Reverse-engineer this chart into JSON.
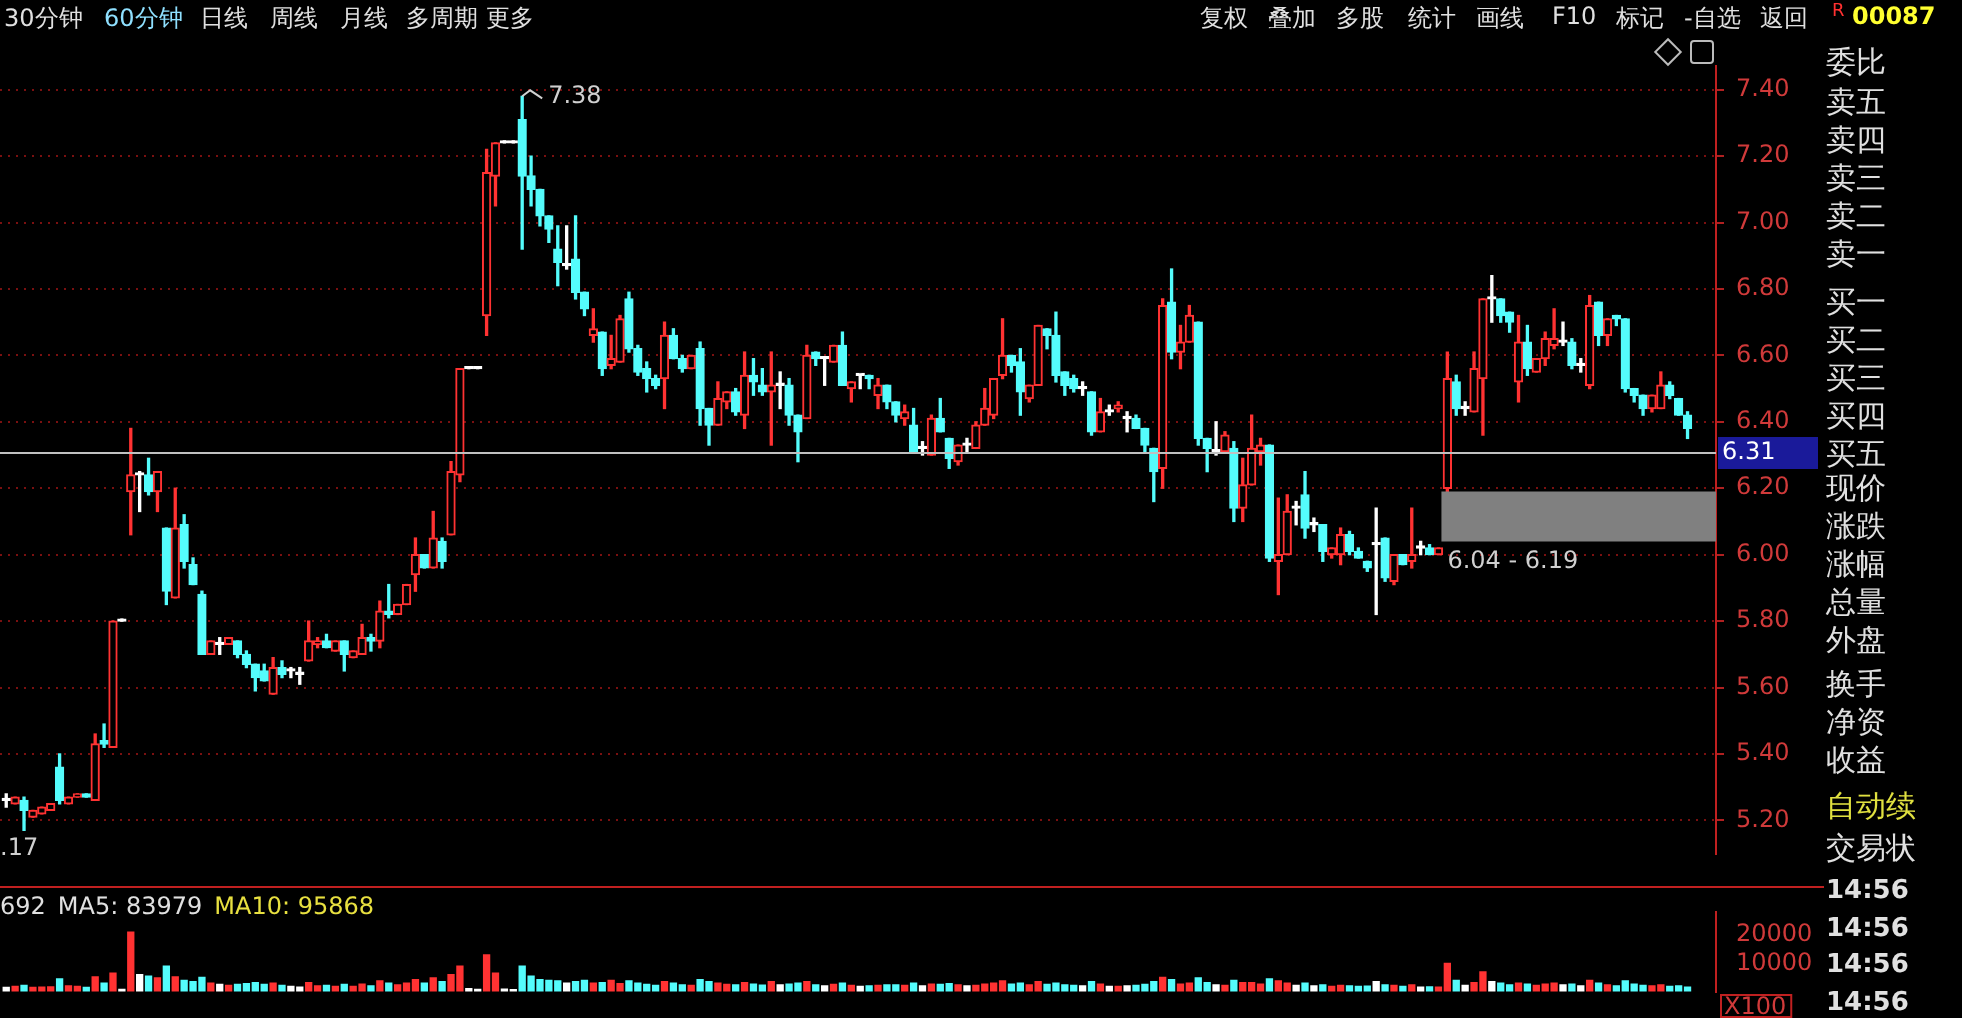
{
  "chart_data": [
    {
      "type": "candlestick",
      "categories": [
        null,
        null,
        null,
        null,
        null,
        null,
        null,
        null,
        null,
        null,
        null,
        null,
        null,
        null,
        null,
        null,
        null,
        null,
        null,
        null,
        null,
        null,
        null,
        null,
        null,
        null,
        null,
        null,
        null,
        null,
        null,
        null,
        null,
        null,
        null,
        null,
        null,
        null,
        null,
        null,
        null,
        null,
        null,
        null,
        null,
        null,
        null,
        null,
        null,
        null,
        null,
        null,
        null,
        null,
        null,
        null,
        null,
        null,
        null,
        null,
        null,
        null,
        null,
        null,
        null,
        null,
        null,
        null,
        null,
        null,
        null,
        null,
        null,
        null,
        null,
        null,
        null,
        null,
        null,
        null,
        null,
        null,
        null,
        null,
        null,
        null,
        null,
        null,
        null,
        null,
        null,
        null,
        null,
        null,
        null,
        null,
        null,
        null,
        null,
        null,
        null,
        null,
        null,
        null,
        null,
        null,
        null,
        null,
        null,
        null,
        null,
        null,
        null,
        null,
        null,
        null,
        null,
        null,
        null,
        null,
        null,
        null,
        null,
        null,
        null,
        null,
        null,
        null,
        null,
        null,
        null,
        null,
        null,
        null,
        null,
        null,
        null,
        null,
        null,
        null,
        null,
        null,
        null,
        null,
        null,
        null,
        null,
        null,
        null,
        null,
        null,
        null,
        null,
        null,
        null,
        null,
        null,
        null,
        null,
        null,
        null,
        null,
        null,
        null,
        null,
        null,
        null,
        null,
        null,
        null,
        null,
        null,
        null,
        null,
        null,
        null,
        null,
        null,
        null,
        null,
        null,
        null,
        null,
        null,
        null,
        null,
        null,
        null,
        null,
        null
      ],
      "ohlc": [
        [
          5.26,
          5.28,
          5.24,
          5.26
        ],
        [
          5.25,
          5.27,
          5.25,
          5.27
        ],
        [
          5.26,
          5.27,
          5.17,
          5.23
        ],
        [
          5.21,
          5.23,
          5.21,
          5.23
        ],
        [
          5.22,
          5.24,
          5.22,
          5.24
        ],
        [
          5.23,
          5.25,
          5.23,
          5.25
        ],
        [
          5.36,
          5.4,
          5.25,
          5.26
        ],
        [
          5.25,
          5.27,
          5.25,
          5.27
        ],
        [
          5.27,
          5.28,
          5.27,
          5.28
        ],
        [
          5.28,
          5.28,
          5.27,
          5.27
        ],
        [
          5.26,
          5.46,
          5.26,
          5.43
        ],
        [
          5.44,
          5.49,
          5.42,
          5.43
        ],
        [
          5.42,
          5.8,
          5.42,
          5.8
        ],
        [
          5.8,
          5.8,
          5.8,
          5.8
        ],
        [
          6.19,
          6.38,
          6.06,
          6.24
        ],
        [
          6.24,
          6.25,
          6.13,
          6.24
        ],
        [
          6.24,
          6.29,
          6.18,
          6.19
        ],
        [
          6.19,
          6.25,
          6.13,
          6.25
        ],
        [
          6.08,
          6.08,
          5.85,
          5.89
        ],
        [
          5.87,
          6.2,
          5.87,
          6.08
        ],
        [
          6.09,
          6.12,
          5.96,
          5.98
        ],
        [
          5.97,
          5.99,
          5.91,
          5.91
        ],
        [
          5.88,
          5.89,
          5.7,
          5.7
        ],
        [
          5.7,
          5.74,
          5.7,
          5.74
        ],
        [
          5.73,
          5.75,
          5.7,
          5.73
        ],
        [
          5.73,
          5.75,
          5.73,
          5.75
        ],
        [
          5.74,
          5.74,
          5.69,
          5.7
        ],
        [
          5.7,
          5.71,
          5.66,
          5.67
        ],
        [
          5.67,
          5.67,
          5.59,
          5.63
        ],
        [
          5.65,
          5.67,
          5.62,
          5.62
        ],
        [
          5.58,
          5.69,
          5.58,
          5.66
        ],
        [
          5.66,
          5.68,
          5.63,
          5.64
        ],
        [
          5.65,
          5.66,
          5.63,
          5.65
        ],
        [
          5.64,
          5.66,
          5.61,
          5.64
        ],
        [
          5.68,
          5.8,
          5.68,
          5.74
        ],
        [
          5.73,
          5.75,
          5.72,
          5.74
        ],
        [
          5.74,
          5.76,
          5.72,
          5.72
        ],
        [
          5.71,
          5.74,
          5.71,
          5.74
        ],
        [
          5.74,
          5.74,
          5.65,
          5.7
        ],
        [
          5.69,
          5.71,
          5.69,
          5.71
        ],
        [
          5.7,
          5.79,
          5.7,
          5.75
        ],
        [
          5.75,
          5.76,
          5.71,
          5.74
        ],
        [
          5.74,
          5.86,
          5.72,
          5.83
        ],
        [
          5.83,
          5.91,
          5.81,
          5.82
        ],
        [
          5.82,
          5.85,
          5.82,
          5.85
        ],
        [
          5.85,
          5.91,
          5.85,
          5.91
        ],
        [
          5.94,
          6.05,
          5.89,
          6.0
        ],
        [
          6.0,
          6.0,
          5.96,
          5.96
        ],
        [
          5.96,
          6.13,
          5.96,
          6.05
        ],
        [
          6.04,
          6.05,
          5.96,
          5.98
        ],
        [
          6.06,
          6.28,
          6.06,
          6.25
        ],
        [
          6.24,
          6.56,
          6.22,
          6.56
        ],
        [
          6.56,
          6.56,
          6.56,
          6.56
        ],
        [
          6.56,
          6.56,
          6.56,
          6.56
        ],
        [
          6.72,
          7.22,
          6.66,
          7.15
        ],
        [
          7.14,
          7.24,
          7.05,
          7.24
        ],
        [
          7.24,
          7.24,
          7.24,
          7.24
        ],
        [
          7.24,
          7.24,
          7.24,
          7.24
        ],
        [
          7.31,
          7.38,
          6.92,
          7.14
        ],
        [
          7.14,
          7.2,
          7.05,
          7.1
        ],
        [
          7.1,
          7.1,
          6.99,
          7.02
        ],
        [
          7.02,
          7.02,
          6.94,
          6.98
        ],
        [
          6.92,
          6.99,
          6.81,
          6.88
        ],
        [
          6.87,
          6.99,
          6.86,
          6.87
        ],
        [
          6.89,
          7.02,
          6.77,
          6.79
        ],
        [
          6.79,
          6.79,
          6.72,
          6.74
        ],
        [
          6.66,
          6.74,
          6.64,
          6.68
        ],
        [
          6.67,
          6.67,
          6.54,
          6.56
        ],
        [
          6.57,
          6.66,
          6.56,
          6.59
        ],
        [
          6.58,
          6.72,
          6.58,
          6.71
        ],
        [
          6.77,
          6.79,
          6.61,
          6.62
        ],
        [
          6.62,
          6.63,
          6.54,
          6.55
        ],
        [
          6.56,
          6.58,
          6.49,
          6.53
        ],
        [
          6.53,
          6.54,
          6.5,
          6.51
        ],
        [
          6.53,
          6.7,
          6.44,
          6.66
        ],
        [
          6.66,
          6.68,
          6.59,
          6.59
        ],
        [
          6.59,
          6.6,
          6.55,
          6.56
        ],
        [
          6.56,
          6.6,
          6.56,
          6.6
        ],
        [
          6.62,
          6.64,
          6.39,
          6.44
        ],
        [
          6.44,
          6.44,
          6.33,
          6.39
        ],
        [
          6.39,
          6.52,
          6.39,
          6.47
        ],
        [
          6.46,
          6.49,
          6.44,
          6.49
        ],
        [
          6.49,
          6.5,
          6.42,
          6.43
        ],
        [
          6.42,
          6.61,
          6.38,
          6.54
        ],
        [
          6.54,
          6.59,
          6.48,
          6.52
        ],
        [
          6.51,
          6.56,
          6.48,
          6.49
        ],
        [
          6.49,
          6.61,
          6.33,
          6.51
        ],
        [
          6.51,
          6.55,
          6.44,
          6.51
        ],
        [
          6.51,
          6.53,
          6.39,
          6.42
        ],
        [
          6.42,
          6.42,
          6.28,
          6.37
        ],
        [
          6.41,
          6.63,
          6.41,
          6.6
        ],
        [
          6.61,
          6.61,
          6.57,
          6.59
        ],
        [
          6.59,
          6.59,
          6.51,
          6.59
        ],
        [
          6.58,
          6.63,
          6.58,
          6.63
        ],
        [
          6.63,
          6.67,
          6.51,
          6.51
        ],
        [
          6.5,
          6.52,
          6.46,
          6.52
        ],
        [
          6.54,
          6.54,
          6.5,
          6.54
        ],
        [
          6.54,
          6.54,
          6.5,
          6.53
        ],
        [
          6.48,
          6.53,
          6.44,
          6.51
        ],
        [
          6.51,
          6.51,
          6.44,
          6.46
        ],
        [
          6.46,
          6.46,
          6.4,
          6.42
        ],
        [
          6.41,
          6.45,
          6.39,
          6.43
        ],
        [
          6.39,
          6.44,
          6.31,
          6.31
        ],
        [
          6.32,
          6.34,
          6.3,
          6.32
        ],
        [
          6.3,
          6.42,
          6.3,
          6.41
        ],
        [
          6.41,
          6.47,
          6.37,
          6.37
        ],
        [
          6.35,
          6.35,
          6.26,
          6.29
        ],
        [
          6.28,
          6.33,
          6.27,
          6.33
        ],
        [
          6.33,
          6.35,
          6.31,
          6.33
        ],
        [
          6.32,
          6.4,
          6.32,
          6.39
        ],
        [
          6.39,
          6.5,
          6.39,
          6.44
        ],
        [
          6.42,
          6.53,
          6.41,
          6.53
        ],
        [
          6.54,
          6.71,
          6.53,
          6.6
        ],
        [
          6.6,
          6.6,
          6.55,
          6.57
        ],
        [
          6.58,
          6.62,
          6.42,
          6.49
        ],
        [
          6.47,
          6.51,
          6.46,
          6.51
        ],
        [
          6.51,
          6.69,
          6.51,
          6.69
        ],
        [
          6.68,
          6.68,
          6.62,
          6.66
        ],
        [
          6.66,
          6.73,
          6.52,
          6.54
        ],
        [
          6.55,
          6.55,
          6.48,
          6.51
        ],
        [
          6.53,
          6.54,
          6.49,
          6.5
        ],
        [
          6.5,
          6.52,
          6.48,
          6.5
        ],
        [
          6.49,
          6.49,
          6.36,
          6.37
        ],
        [
          6.37,
          6.47,
          6.37,
          6.43
        ],
        [
          6.43,
          6.45,
          6.42,
          6.43
        ],
        [
          6.44,
          6.46,
          6.43,
          6.45
        ],
        [
          6.41,
          6.43,
          6.37,
          6.41
        ],
        [
          6.41,
          6.42,
          6.38,
          6.38
        ],
        [
          6.38,
          6.38,
          6.31,
          6.33
        ],
        [
          6.32,
          6.32,
          6.16,
          6.25
        ],
        [
          6.26,
          6.77,
          6.2,
          6.75
        ],
        [
          6.76,
          6.86,
          6.59,
          6.61
        ],
        [
          6.61,
          6.69,
          6.56,
          6.64
        ],
        [
          6.64,
          6.75,
          6.64,
          6.72
        ],
        [
          6.7,
          6.7,
          6.33,
          6.35
        ],
        [
          6.35,
          6.35,
          6.25,
          6.32
        ],
        [
          6.31,
          6.4,
          6.3,
          6.31
        ],
        [
          6.31,
          6.37,
          6.31,
          6.36
        ],
        [
          6.32,
          6.34,
          6.1,
          6.14
        ],
        [
          6.14,
          6.29,
          6.1,
          6.21
        ],
        [
          6.21,
          6.42,
          6.21,
          6.32
        ],
        [
          6.31,
          6.35,
          6.27,
          6.33
        ],
        [
          6.33,
          6.33,
          5.98,
          5.99
        ],
        [
          5.98,
          6.17,
          5.88,
          6.0
        ],
        [
          6.0,
          6.18,
          6.0,
          6.13
        ],
        [
          6.14,
          6.16,
          6.09,
          6.14
        ],
        [
          6.18,
          6.25,
          6.05,
          6.08
        ],
        [
          6.09,
          6.11,
          6.07,
          6.09
        ],
        [
          6.09,
          6.09,
          5.98,
          6.01
        ],
        [
          6.0,
          6.02,
          5.99,
          6.02
        ],
        [
          6.0,
          6.08,
          5.97,
          6.06
        ],
        [
          6.06,
          6.07,
          6.0,
          6.01
        ],
        [
          6.01,
          6.02,
          5.99,
          5.99
        ],
        [
          5.98,
          5.98,
          5.95,
          5.96
        ],
        [
          6.03,
          6.14,
          5.82,
          6.03
        ],
        [
          6.05,
          6.05,
          5.92,
          5.93
        ],
        [
          5.92,
          6.0,
          5.91,
          6.0
        ],
        [
          6.0,
          6.0,
          5.97,
          5.97
        ],
        [
          5.98,
          6.14,
          5.96,
          6.0
        ],
        [
          6.02,
          6.04,
          6.0,
          6.02
        ],
        [
          6.02,
          6.03,
          6.0,
          6.0
        ],
        [
          6.0,
          6.02,
          6.0,
          6.02
        ],
        [
          6.2,
          6.61,
          6.18,
          6.53
        ],
        [
          6.52,
          6.54,
          6.42,
          6.44
        ],
        [
          6.44,
          6.46,
          6.42,
          6.44
        ],
        [
          6.43,
          6.61,
          6.43,
          6.56
        ],
        [
          6.53,
          6.77,
          6.36,
          6.77
        ],
        [
          6.77,
          6.84,
          6.7,
          6.77
        ],
        [
          6.77,
          6.77,
          6.7,
          6.72
        ],
        [
          6.73,
          6.73,
          6.67,
          6.7
        ],
        [
          6.52,
          6.72,
          6.46,
          6.64
        ],
        [
          6.64,
          6.69,
          6.54,
          6.56
        ],
        [
          6.55,
          6.59,
          6.55,
          6.59
        ],
        [
          6.59,
          6.67,
          6.57,
          6.65
        ],
        [
          6.63,
          6.74,
          6.62,
          6.65
        ],
        [
          6.64,
          6.7,
          6.63,
          6.64
        ],
        [
          6.64,
          6.65,
          6.56,
          6.57
        ],
        [
          6.57,
          6.59,
          6.55,
          6.57
        ],
        [
          6.51,
          6.78,
          6.5,
          6.75
        ],
        [
          6.76,
          6.76,
          6.63,
          6.66
        ],
        [
          6.66,
          6.71,
          6.63,
          6.71
        ],
        [
          6.72,
          6.72,
          6.69,
          6.71
        ],
        [
          6.71,
          6.71,
          6.49,
          6.5
        ],
        [
          6.5,
          6.5,
          6.46,
          6.48
        ],
        [
          6.48,
          6.48,
          6.42,
          6.44
        ],
        [
          6.44,
          6.48,
          6.43,
          6.48
        ],
        [
          6.44,
          6.55,
          6.44,
          6.51
        ],
        [
          6.51,
          6.52,
          6.47,
          6.48
        ],
        [
          6.47,
          6.47,
          6.42,
          6.42
        ],
        [
          6.42,
          6.43,
          6.35,
          6.38
        ]
      ],
      "ylim": [
        5.1,
        7.47
      ],
      "yticks": [
        {
          "value": 5.2,
          "label": "5.20"
        },
        {
          "value": 5.4,
          "label": "5.40"
        },
        {
          "value": 5.6,
          "label": "5.60"
        },
        {
          "value": 5.8,
          "label": "5.80"
        },
        {
          "value": 6.0,
          "label": "6.00"
        },
        {
          "value": 6.2,
          "label": "6.20"
        },
        {
          "value": 6.4,
          "label": "6.40"
        },
        {
          "value": 6.6,
          "label": "6.60"
        },
        {
          "value": 6.8,
          "label": "6.80"
        },
        {
          "value": 7.0,
          "label": "7.00"
        },
        {
          "value": 7.2,
          "label": "7.20"
        },
        {
          "value": 7.4,
          "label": "7.40"
        }
      ],
      "grid": "y",
      "legend": false,
      "tick_labels": "y",
      "ref_lines": [
        {
          "axis": "y",
          "value": 6.31,
          "label": "6.31",
          "color": "#c0c0c0"
        }
      ],
      "bands": [
        {
          "axis": "y",
          "from": 6.04,
          "to": 6.19,
          "label": "6.04 - 6.19",
          "color": "#808080"
        }
      ],
      "annotations": [
        "7.38",
        ".17"
      ]
    },
    {
      "type": "bar",
      "categories": [
        null,
        null,
        null,
        null,
        null,
        null,
        null,
        null,
        null,
        null,
        null,
        null,
        null,
        null,
        null,
        null,
        null,
        null,
        null,
        null,
        null,
        null,
        null,
        null,
        null,
        null,
        null,
        null,
        null,
        null,
        null,
        null,
        null,
        null,
        null,
        null,
        null,
        null,
        null,
        null,
        null,
        null,
        null,
        null,
        null,
        null,
        null,
        null,
        null,
        null,
        null,
        null,
        null,
        null,
        null,
        null,
        null,
        null,
        null,
        null,
        null,
        null,
        null,
        null,
        null,
        null,
        null,
        null,
        null,
        null,
        null,
        null,
        null,
        null,
        null,
        null,
        null,
        null,
        null,
        null,
        null,
        null,
        null,
        null,
        null,
        null,
        null,
        null,
        null,
        null,
        null,
        null,
        null,
        null,
        null,
        null,
        null,
        null,
        null,
        null,
        null,
        null,
        null,
        null,
        null,
        null,
        null,
        null,
        null,
        null,
        null,
        null,
        null,
        null,
        null,
        null,
        null,
        null,
        null,
        null,
        null,
        null,
        null,
        null,
        null,
        null,
        null,
        null,
        null,
        null,
        null,
        null,
        null,
        null,
        null,
        null,
        null,
        null,
        null,
        null,
        null,
        null,
        null,
        null,
        null,
        null,
        null,
        null,
        null,
        null,
        null,
        null,
        null,
        null,
        null,
        null,
        null,
        null,
        null,
        null,
        null,
        null,
        null,
        null,
        null,
        null,
        null,
        null,
        null,
        null,
        null,
        null,
        null,
        null,
        null,
        null,
        null,
        null,
        null,
        null,
        null,
        null,
        null,
        null,
        null,
        null,
        null,
        null,
        null,
        null
      ],
      "values": [
        1500,
        1800,
        2200,
        1500,
        1600,
        1700,
        4500,
        2000,
        1800,
        1500,
        5200,
        3000,
        6500,
        800,
        21000,
        6000,
        5500,
        4800,
        9000,
        5200,
        4000,
        3500,
        5000,
        3000,
        2500,
        2200,
        2500,
        2800,
        3200,
        2500,
        3000,
        2200,
        1800,
        1600,
        3200,
        2000,
        2200,
        1800,
        2500,
        1800,
        2600,
        2000,
        3800,
        3000,
        2400,
        3000,
        4200,
        3000,
        4800,
        3500,
        6000,
        9000,
        1000,
        800,
        13000,
        6500,
        900,
        700,
        9000,
        5500,
        4200,
        4000,
        3800,
        3000,
        3500,
        4000,
        3000,
        3200,
        4000,
        2800,
        3800,
        3000,
        2500,
        2200,
        3500,
        3000,
        2400,
        2200,
        4200,
        3500,
        3000,
        2500,
        2400,
        3200,
        2600,
        2300,
        3500,
        2400,
        2600,
        3000,
        3500,
        2400,
        2000,
        2500,
        3000,
        2200,
        1800,
        2000,
        2200,
        2400,
        2400,
        2200,
        3000,
        2000,
        2600,
        2500,
        2800,
        2400,
        2000,
        2200,
        2600,
        3000,
        3800,
        2600,
        3000,
        2400,
        3500,
        2500,
        3000,
        2400,
        2200,
        2000,
        3500,
        2600,
        1800,
        1800,
        2000,
        2200,
        2500,
        3500,
        5000,
        4200,
        2600,
        3000,
        4800,
        3200,
        2400,
        2200,
        4000,
        3200,
        3200,
        2600,
        4500,
        3800,
        3000,
        2200,
        3000,
        2000,
        2400,
        1800,
        2200,
        2000,
        1800,
        1900,
        3500,
        2400,
        2200,
        1800,
        2400,
        1600,
        1700,
        1600,
        10000,
        4000,
        2200,
        3200,
        7000,
        3500,
        3000,
        2400,
        3000,
        2600,
        2200,
        2600,
        3000,
        2400,
        2600,
        2000,
        4000,
        3000,
        2400,
        2000,
        3800,
        2600,
        2200,
        2000,
        2400,
        1800,
        2000,
        1600
      ],
      "ylim": [
        0,
        28000
      ],
      "yticks": [
        10000,
        20000
      ],
      "legend": false,
      "tick_labels": "y",
      "annotations": [
        "692",
        "MA5: 83979",
        "MA10: 95868",
        "X100"
      ]
    },
    {
      "type": "other",
      "annotations": [
        "30分钟",
        "60分钟",
        "日线",
        "周线",
        "月线",
        "多周期",
        "更多",
        "复权",
        "叠加",
        "多股",
        "统计",
        "画线",
        "F10",
        "标记",
        "-自选",
        "返回",
        "R",
        "00087",
        "委比",
        "卖五",
        "卖四",
        "卖三",
        "卖二",
        "卖一",
        "买一",
        "买二",
        "买三",
        "买四",
        "买五",
        "现价",
        "涨跌",
        "涨幅",
        "总量",
        "外盘",
        "换手",
        "净资",
        "收益",
        "自动续",
        "交易状",
        "14:56",
        "14:56",
        "14:56",
        "14:56"
      ]
    }
  ]
}
